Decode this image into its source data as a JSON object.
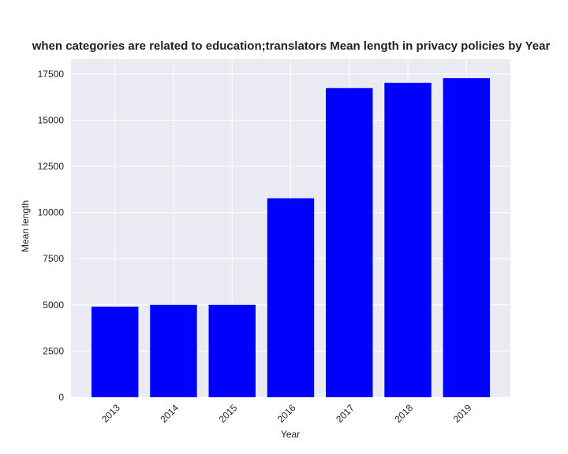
{
  "chart_data": {
    "type": "bar",
    "title": "when categories are related to education;translators Mean length in privacy policies by Year",
    "xlabel": "Year",
    "ylabel": "Mean length",
    "categories": [
      "2013",
      "2014",
      "2015",
      "2016",
      "2017",
      "2018",
      "2019"
    ],
    "values": [
      4900,
      5000,
      5000,
      10770,
      16730,
      17020,
      17270
    ],
    "ylim": [
      0,
      18300
    ],
    "yticks": [
      0,
      2500,
      5000,
      7500,
      10000,
      12500,
      15000,
      17500
    ],
    "ytick_labels": [
      "0",
      "2500",
      "5000",
      "7500",
      "10000",
      "12500",
      "15000",
      "17500"
    ],
    "grid": true,
    "legend": "none",
    "colors": {
      "bar": "#0000ff",
      "plot_background": "#eaeaf2",
      "grid": "#ffffff"
    }
  }
}
